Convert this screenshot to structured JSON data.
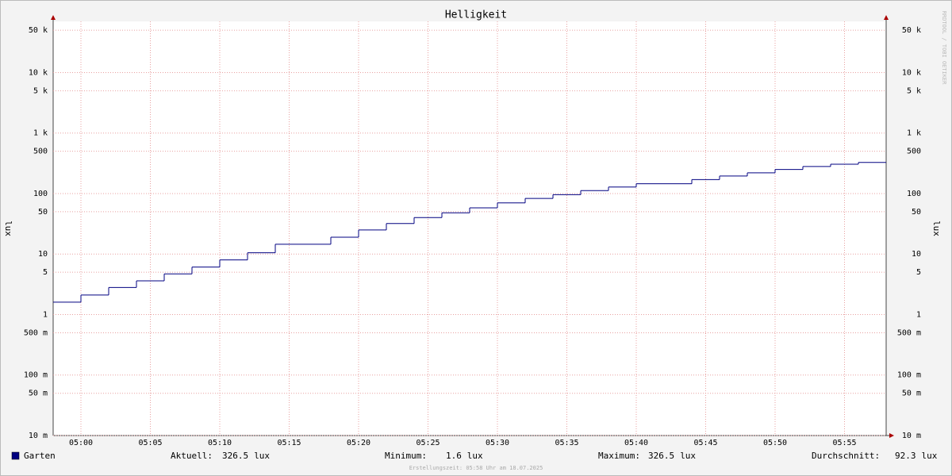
{
  "chart_data": {
    "type": "line",
    "title": "Helligkeit",
    "ylabel": "lux",
    "x": [
      "04:58",
      "05:00",
      "05:02",
      "05:04",
      "05:06",
      "05:08",
      "05:10",
      "05:12",
      "05:14",
      "05:18",
      "05:20",
      "05:22",
      "05:24",
      "05:26",
      "05:28",
      "05:30",
      "05:32",
      "05:34",
      "05:36",
      "05:38",
      "05:40",
      "05:44",
      "05:46",
      "05:48",
      "05:50",
      "05:52",
      "05:54",
      "05:56"
    ],
    "series": [
      {
        "name": "Garten",
        "color": "#000080",
        "values": [
          1.6,
          2.1,
          2.8,
          3.6,
          4.7,
          6.1,
          8.0,
          10.5,
          14.5,
          19,
          25,
          32,
          40,
          48,
          58,
          70,
          83,
          96,
          112,
          128,
          145,
          170,
          195,
          220,
          250,
          280,
          305,
          326.5
        ]
      }
    ],
    "xlim": [
      "04:58",
      "05:58"
    ],
    "xticks": [
      "05:00",
      "05:05",
      "05:10",
      "05:15",
      "05:20",
      "05:25",
      "05:30",
      "05:35",
      "05:40",
      "05:45",
      "05:50",
      "05:55"
    ],
    "ylim": [
      0.01,
      70000
    ],
    "log_y": true,
    "grid": true,
    "yticks": [
      {
        "value": 0.01,
        "label": "10 m"
      },
      {
        "value": 0.05,
        "label": "50 m"
      },
      {
        "value": 0.1,
        "label": "100 m"
      },
      {
        "value": 0.5,
        "label": "500 m"
      },
      1,
      5,
      10,
      50,
      100,
      500,
      {
        "value": 1000,
        "label": "1 k"
      },
      {
        "value": 5000,
        "label": "5 k"
      },
      {
        "value": 10000,
        "label": "10 k"
      },
      {
        "value": 50000,
        "label": "50 k"
      }
    ],
    "stats": [
      {
        "label": "Aktuell:",
        "value": 326.5,
        "unit": "lux"
      },
      {
        "label": "Minimum:",
        "value": 1.6,
        "unit": "lux"
      },
      {
        "label": "Maximum:",
        "value": 326.5,
        "unit": "lux"
      },
      {
        "label": "Durchschnitt:",
        "value": 92.3,
        "unit": "lux"
      }
    ],
    "footer": "Erstellungszeit: 05:58 Uhr am 18.07.2025",
    "watermark": "RRDTOOL / TOBI OETIKER"
  }
}
